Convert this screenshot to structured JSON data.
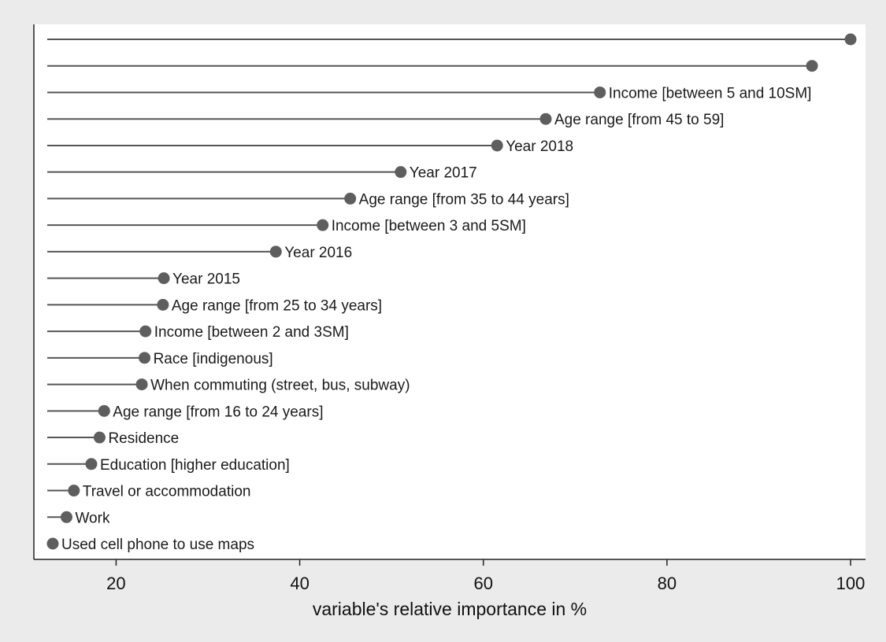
{
  "chart_data": {
    "type": "lollipop",
    "title": "",
    "xlabel": "variable's relative importance in %",
    "ylabel": "",
    "xlim": [
      11.5,
      101.5
    ],
    "xticks": [
      20,
      40,
      60,
      80,
      100
    ],
    "grid": false,
    "legend": "none",
    "colors": {
      "plot_background": "#ffffff",
      "outer_background": "#ebebeb",
      "marker": "#5e5e5e",
      "stem": "#555555",
      "axis": "#222222"
    },
    "points": [
      {
        "label": "",
        "value": 100
      },
      {
        "label": "",
        "value": 95.8
      },
      {
        "label": "Income [between 5 and 10SM]",
        "value": 72.7
      },
      {
        "label": "Age range [from 45 to 59]",
        "value": 66.8
      },
      {
        "label": "Year 2018",
        "value": 61.5
      },
      {
        "label": "Year 2017",
        "value": 51.0
      },
      {
        "label": "Age range [from 35 to 44 years]",
        "value": 45.5
      },
      {
        "label": "Income [between 3 and 5SM]",
        "value": 42.5
      },
      {
        "label": "Year 2016",
        "value": 37.4
      },
      {
        "label": "Year 2015",
        "value": 25.2
      },
      {
        "label": "Age range [from 25 to 34 years]",
        "value": 25.1
      },
      {
        "label": "Income [between 2 and 3SM]",
        "value": 23.2
      },
      {
        "label": "Race [indigenous]",
        "value": 23.1
      },
      {
        "label": "When commuting (street, bus, subway)",
        "value": 22.8
      },
      {
        "label": "Age range [from 16 to 24 years]",
        "value": 18.7
      },
      {
        "label": "Residence",
        "value": 18.2
      },
      {
        "label": "Education [higher education]",
        "value": 17.3
      },
      {
        "label": "Travel or accommodation",
        "value": 15.4
      },
      {
        "label": "Work",
        "value": 14.6
      },
      {
        "label": "Used cell phone to use maps",
        "value": 13.1
      }
    ]
  }
}
